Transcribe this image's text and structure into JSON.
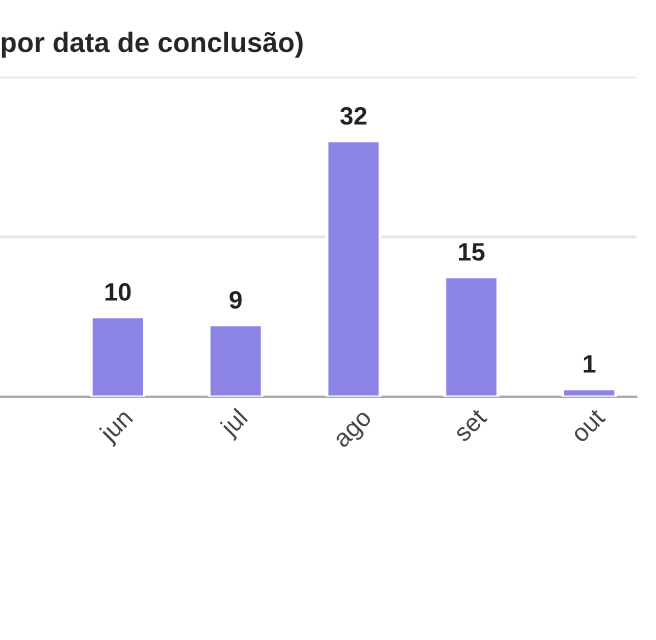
{
  "chart_data": {
    "type": "bar",
    "title": "por data de conclusão)",
    "categories": [
      "jun",
      "jul",
      "ago",
      "set",
      "out"
    ],
    "values": [
      10,
      9,
      32,
      15,
      1
    ],
    "color": "#8b84e4",
    "data_labels": true,
    "ylim": [
      0,
      40
    ],
    "yticks": [
      {
        "value": 0,
        "label": null
      },
      {
        "value": 20,
        "label": null
      },
      {
        "value": 40,
        "label": null
      }
    ],
    "grid": "y",
    "tick_labels": "x"
  }
}
